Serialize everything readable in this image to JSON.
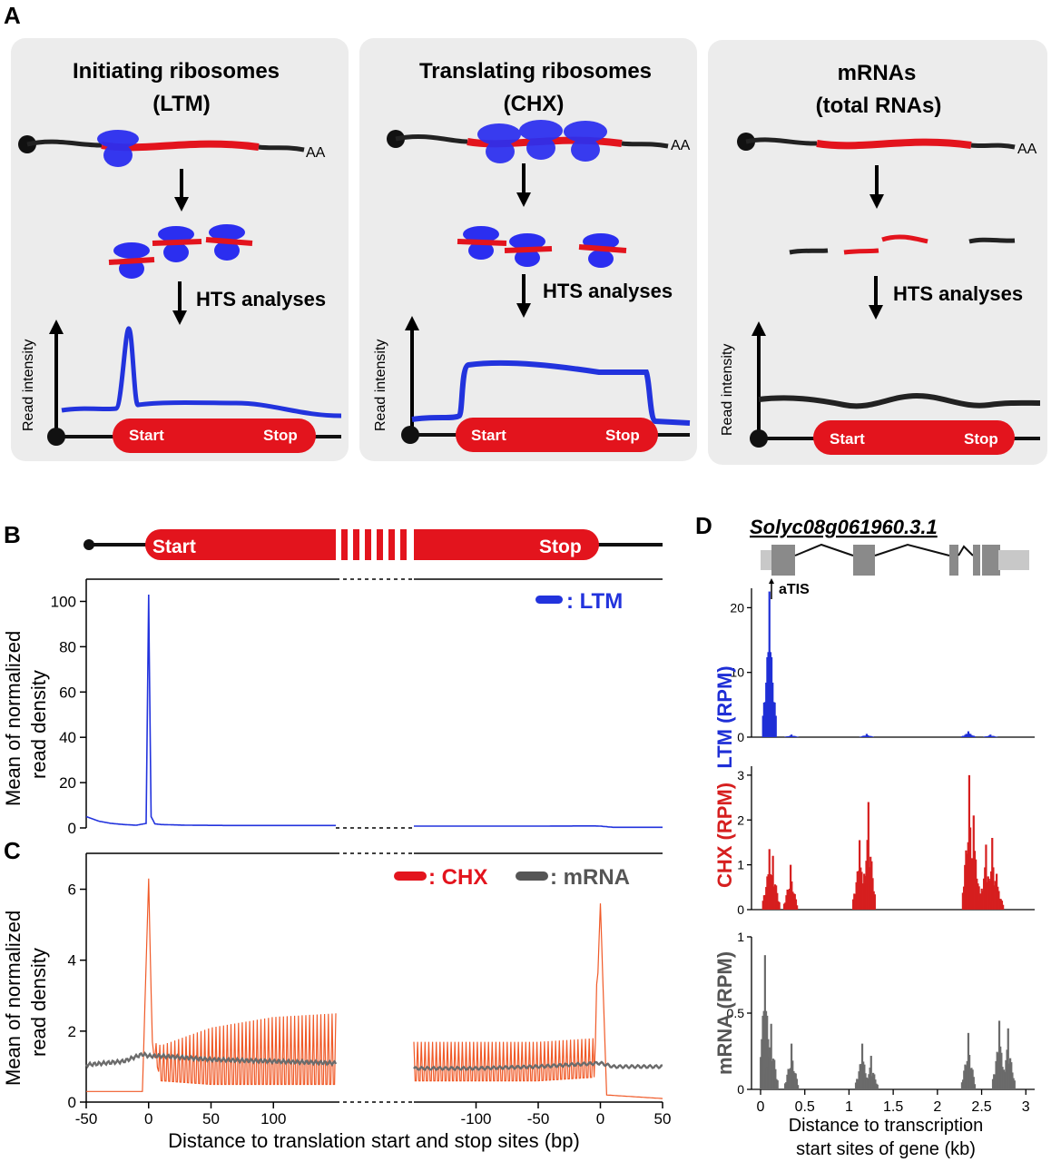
{
  "panel_letters": {
    "a": "A",
    "b": "B",
    "c": "C",
    "d": "D"
  },
  "panel_a": {
    "boxes": [
      {
        "title1": "Initiating ribosomes",
        "title2": "(LTM)"
      },
      {
        "title1": "Translating ribosomes",
        "title2": "(CHX)"
      },
      {
        "title1": "mRNAs",
        "title2": "(total RNAs)"
      }
    ],
    "poly_a": "AA",
    "hts_label": "HTS analyses",
    "y_axis_label": "Read intensity",
    "start_label": "Start",
    "stop_label": "Stop",
    "colors": {
      "ribosome": "#2b2ef0",
      "mrna_cds": "#e3141d",
      "box_bg": "#ececec",
      "signal_mrna": "#222222"
    }
  },
  "panel_bc": {
    "gene_start": "Start",
    "gene_stop": "Stop",
    "y_label_line1": "Mean of normalized",
    "y_label_line2": "read density",
    "x_label": "Distance to translation start and stop sites (bp)",
    "x_ticks_start": [
      "-50",
      "0",
      "50",
      "100"
    ],
    "x_ticks_stop": [
      "-100",
      "-50",
      "0",
      "50"
    ],
    "colors": {
      "ltm": "#2233dd",
      "chx": "#f05a28",
      "mrna": "#6b6b6b"
    }
  },
  "panel_d": {
    "gene_name": "Solyc08g061960.3.1",
    "atis_label": "aTIS",
    "x_label_line1": "Distance to transcription",
    "x_label_line2": "start sites of gene (kb)",
    "x_ticks": [
      "0",
      "0.5",
      "1",
      "1.5",
      "2",
      "2.5",
      "3"
    ],
    "colors": {
      "ltm": "#1f2fd6",
      "chx": "#d61f1f",
      "mrna": "#6b6b6b",
      "exon": "#8a8a8a",
      "utr": "#c8c8c8"
    }
  },
  "chart_data": [
    {
      "type": "line",
      "panel": "B",
      "ylabel": "Mean of normalized read density",
      "ylim": [
        0,
        105
      ],
      "yticks": [
        0,
        20,
        40,
        60,
        80,
        100
      ],
      "series": [
        {
          "name": "LTM",
          "x_start_region": [
            -50,
            -40,
            -30,
            -20,
            -10,
            -2,
            0,
            2,
            5,
            10,
            30,
            60,
            100,
            150
          ],
          "y_start_region": [
            5,
            3,
            2,
            1.5,
            1.2,
            2,
            103,
            5,
            1.8,
            1.5,
            1.2,
            1.1,
            1.1,
            1.1
          ],
          "x_stop_region": [
            -150,
            -100,
            -50,
            -5,
            0,
            10,
            50
          ],
          "y_stop_region": [
            0.8,
            0.8,
            0.8,
            0.9,
            0.8,
            0.3,
            0.3
          ]
        }
      ]
    },
    {
      "type": "line",
      "panel": "C",
      "ylabel": "Mean of normalized read density",
      "xlabel": "Distance to translation start and stop sites (bp)",
      "ylim": [
        0,
        6.5
      ],
      "yticks": [
        0,
        2,
        4,
        6
      ],
      "series": [
        {
          "name": "CHX",
          "x_start_region": [
            -50,
            -5,
            0,
            3,
            10,
            50,
            100,
            150
          ],
          "y_start_region_low": [
            0.3,
            0.3,
            6.3,
            1.5,
            0.6,
            0.5,
            0.5,
            0.5
          ],
          "y_start_region_high": [
            0.3,
            0.4,
            6.3,
            1.7,
            1.6,
            2.1,
            2.4,
            2.5
          ],
          "x_stop_region": [
            -150,
            -100,
            -50,
            -5,
            0,
            5,
            50
          ],
          "y_stop_region_low": [
            0.6,
            0.6,
            0.6,
            0.7,
            5.6,
            0.2,
            0.1
          ],
          "y_stop_region_high": [
            1.7,
            1.7,
            1.7,
            1.8,
            5.6,
            0.2,
            0.2
          ],
          "period_bp": 3
        },
        {
          "name": "mRNA",
          "x_start_region": [
            -50,
            -20,
            -5,
            0,
            10,
            50,
            100,
            150
          ],
          "y_start_region": [
            1.05,
            1.15,
            1.35,
            1.3,
            1.3,
            1.2,
            1.15,
            1.1
          ],
          "x_stop_region": [
            -150,
            -100,
            -50,
            0,
            10,
            50
          ],
          "y_stop_region": [
            0.95,
            0.95,
            1.0,
            1.1,
            1.0,
            1.0
          ]
        }
      ]
    },
    {
      "type": "bar",
      "panel": "D",
      "xlabel": "Distance to transcription start sites of gene (kb)",
      "xlim": [
        0,
        3.1
      ],
      "tracks": [
        {
          "name": "LTM (RPM)",
          "ylim": [
            0,
            23
          ],
          "yticks": [
            0,
            10,
            20
          ],
          "x": [
            0.1,
            0.35,
            1.2,
            2.35,
            2.6
          ],
          "y": [
            22.5,
            0.4,
            0.5,
            0.9,
            0.4
          ]
        },
        {
          "name": "CHX (RPM)",
          "ylim": [
            0,
            3.2
          ],
          "yticks": [
            0,
            1,
            2,
            3
          ],
          "x": [
            0.1,
            0.14,
            0.34,
            1.12,
            1.22,
            2.36,
            2.41,
            2.55,
            2.62,
            2.67
          ],
          "y": [
            1.35,
            1.2,
            1.0,
            1.55,
            2.4,
            3.0,
            2.1,
            1.45,
            1.6,
            0.8
          ]
        },
        {
          "name": "mRNA (RPM)",
          "ylim": [
            0,
            1
          ],
          "yticks": [
            0,
            0.5,
            1
          ],
          "x": [
            0.05,
            0.12,
            0.35,
            1.15,
            1.25,
            2.35,
            2.7,
            2.8
          ],
          "y": [
            0.88,
            0.43,
            0.3,
            0.3,
            0.22,
            0.37,
            0.45,
            0.4
          ]
        }
      ]
    }
  ]
}
